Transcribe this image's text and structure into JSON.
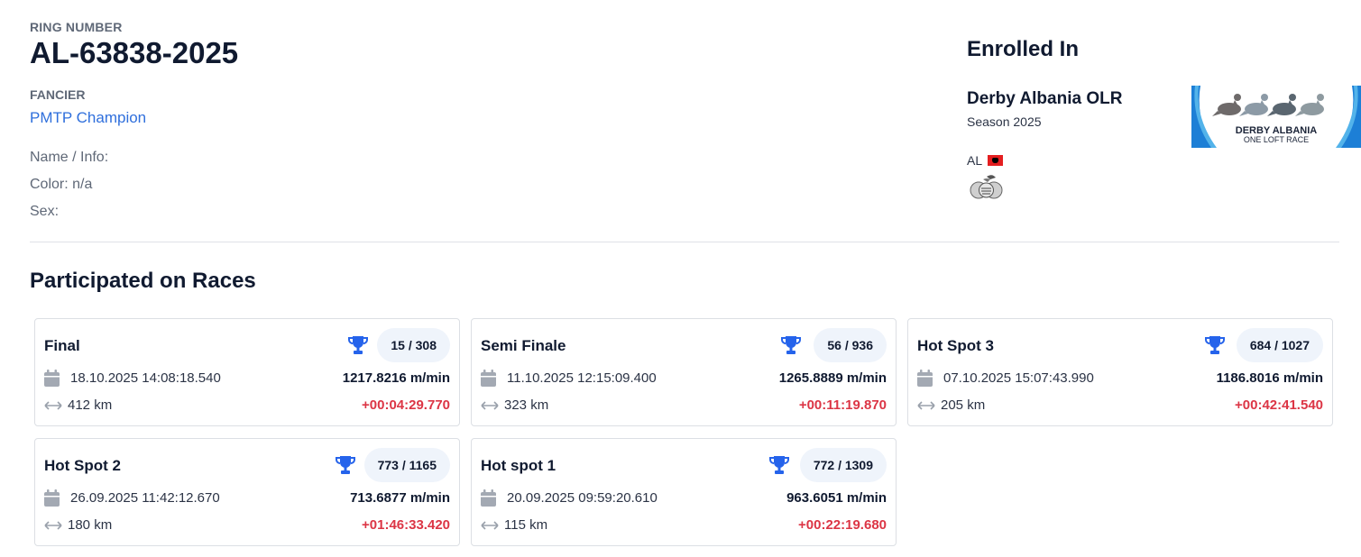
{
  "pigeon": {
    "ring_label": "RING NUMBER",
    "ring_number": "AL-63838-2025",
    "fancier_label": "FANCIER",
    "fancier_name": "PMTP Champion",
    "name_info": "Name / Info:",
    "color": "Color: n/a",
    "sex": "Sex:"
  },
  "enrolled": {
    "title": "Enrolled In",
    "race_name": "Derby Albania OLR",
    "season": "Season 2025",
    "country_code": "AL",
    "logo_text_line1": "DERBY ALBANIA",
    "logo_text_line2": "ONE LOFT RACE",
    "flag_color": "#e41e20"
  },
  "races_section": {
    "title": "Participated on Races"
  },
  "races": [
    {
      "name": "Final",
      "place": "15 / 308",
      "date": "18.10.2025 14:08:18.540",
      "distance": "412 km",
      "speed": "1217.8216 m/min",
      "time_diff": "+00:04:29.770"
    },
    {
      "name": "Semi Finale",
      "place": "56 / 936",
      "date": "11.10.2025 12:15:09.400",
      "distance": "323 km",
      "speed": "1265.8889 m/min",
      "time_diff": "+00:11:19.870"
    },
    {
      "name": "Hot Spot 3",
      "place": "684 / 1027",
      "date": "07.10.2025 15:07:43.990",
      "distance": "205 km",
      "speed": "1186.8016 m/min",
      "time_diff": "+00:42:41.540"
    },
    {
      "name": "Hot Spot 2",
      "place": "773 / 1165",
      "date": "26.09.2025 11:42:12.670",
      "distance": "180 km",
      "speed": "713.6877 m/min",
      "time_diff": "+01:46:33.420"
    },
    {
      "name": "Hot spot 1",
      "place": "772 / 1309",
      "date": "20.09.2025 09:59:20.610",
      "distance": "115 km",
      "speed": "963.6051 m/min",
      "time_diff": "+00:22:19.680"
    }
  ],
  "icons": {
    "trophy": "trophy-icon",
    "calendar": "calendar-icon",
    "distance": "arrows-horizontal-icon"
  },
  "colors": {
    "accent": "#2f6fdc",
    "trophy": "#2563eb",
    "diff": "#dc3545"
  }
}
